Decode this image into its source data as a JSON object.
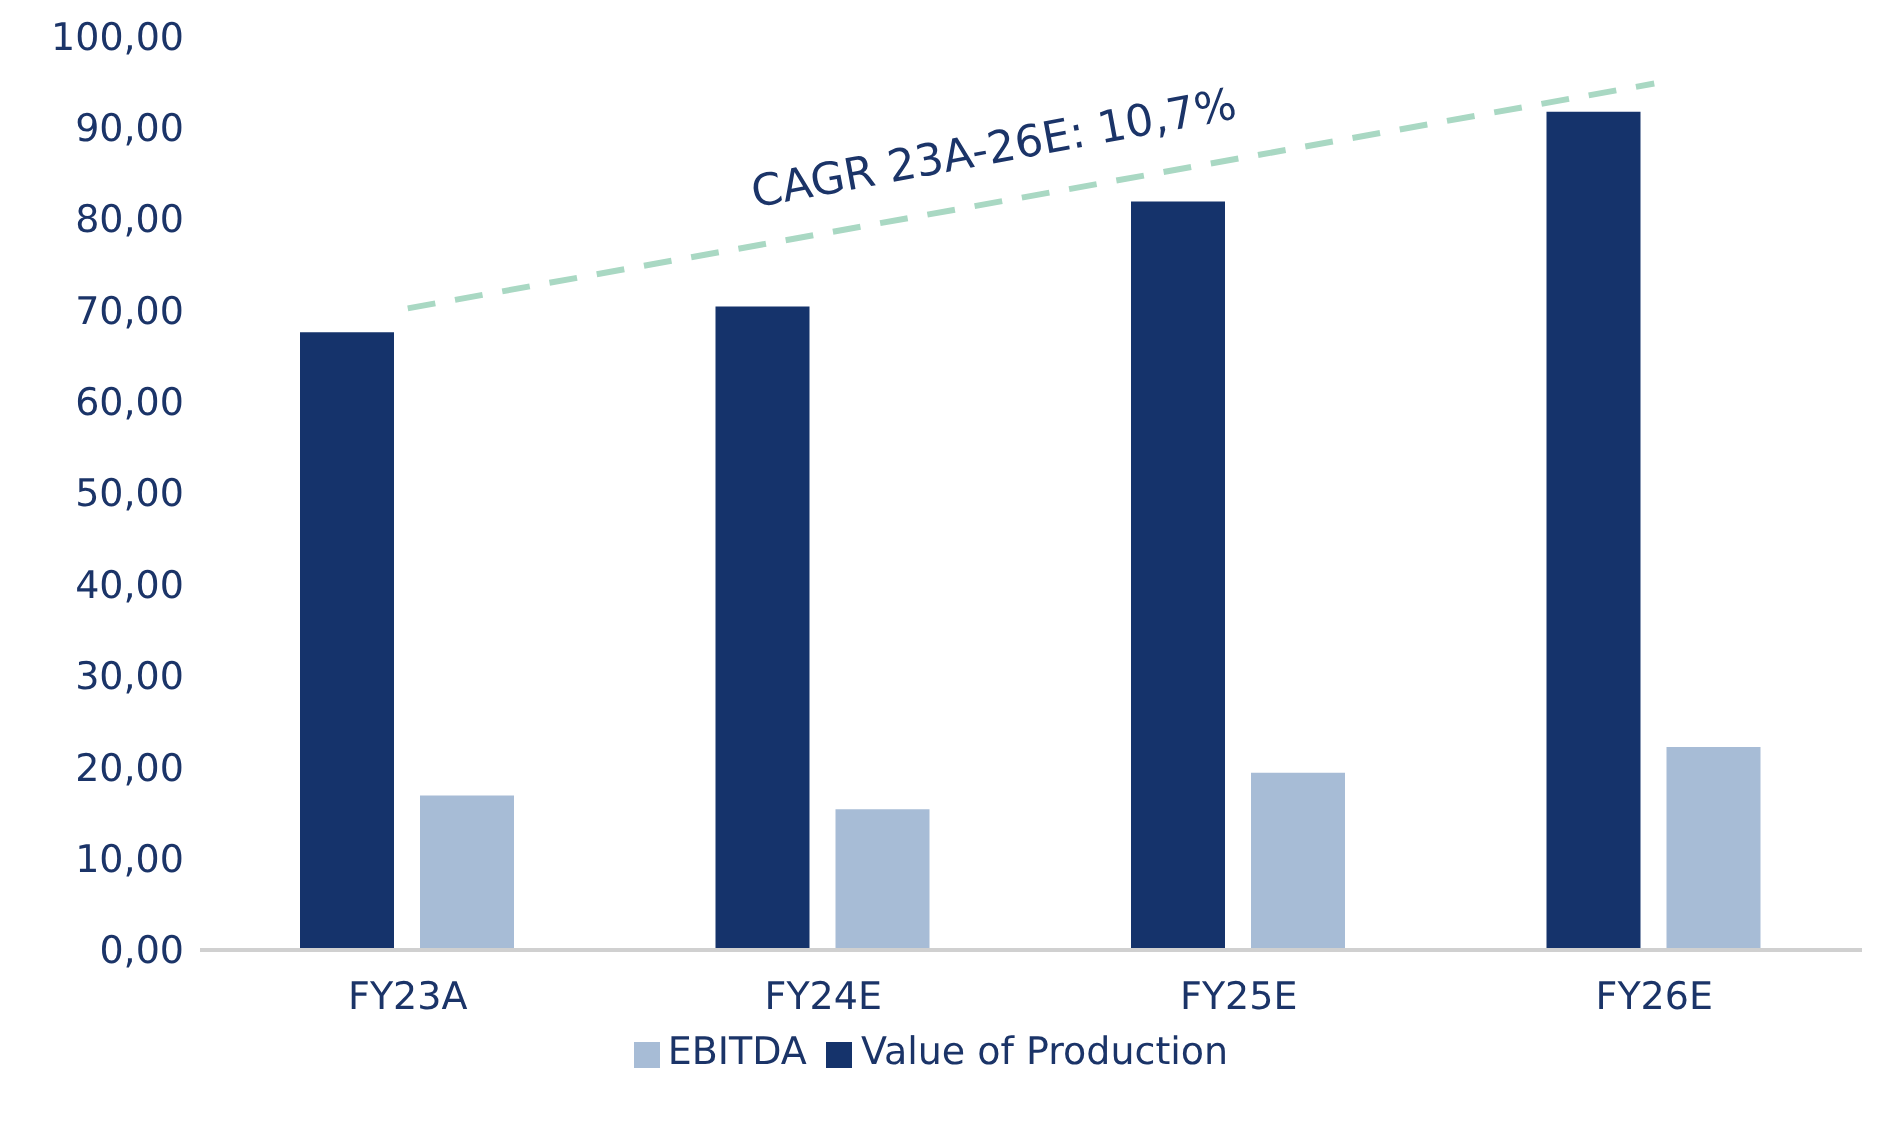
{
  "chart_data": {
    "type": "bar",
    "categories": [
      "FY23A",
      "FY24E",
      "FY25E",
      "FY26E"
    ],
    "series": [
      {
        "name": "Value of Production",
        "color": "#15336b",
        "values": [
          67.6,
          70.4,
          81.9,
          91.7
        ]
      },
      {
        "name": "EBITDA",
        "color": "#a7bcd6",
        "values": [
          16.9,
          15.4,
          19.4,
          22.2
        ]
      },
      {
        "type": "line",
        "color": "#a9d8c3",
        "line_style": "dashed",
        "marker": "none",
        "values": [
          70.2,
          78.4,
          86.6,
          94.8
        ]
      }
    ],
    "ylim": [
      0,
      100
    ],
    "yticks": [
      {
        "value": 0,
        "label": "0,00"
      },
      {
        "value": 10,
        "label": "10,00"
      },
      {
        "value": 20,
        "label": "20,00"
      },
      {
        "value": 30,
        "label": "30,00"
      },
      {
        "value": 40,
        "label": "40,00"
      },
      {
        "value": 50,
        "label": "50,00"
      },
      {
        "value": 60,
        "label": "60,00"
      },
      {
        "value": 70,
        "label": "70,00"
      },
      {
        "value": 80,
        "label": "80,00"
      },
      {
        "value": 90,
        "label": "90,00"
      },
      {
        "value": 100,
        "label": "100,00"
      }
    ],
    "annotations": [
      "CAGR 23A-26E: 10,7%"
    ],
    "grid": false,
    "legend": "bottom"
  }
}
